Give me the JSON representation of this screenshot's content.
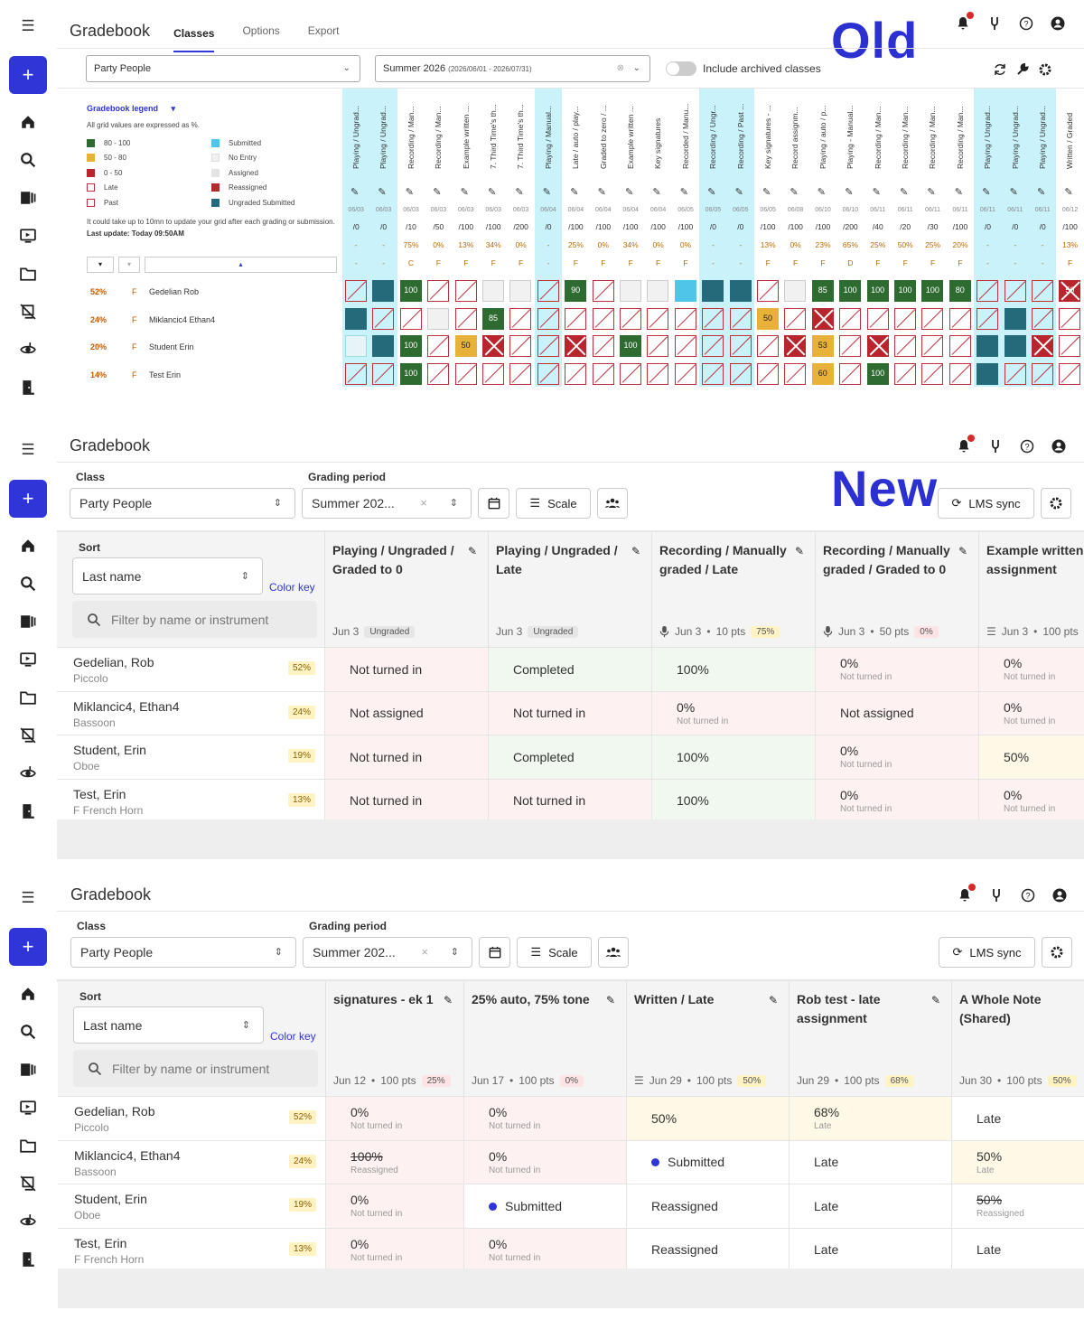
{
  "old": {
    "label": "Old",
    "title": "Gradebook",
    "tabs": [
      "Classes",
      "Options",
      "Export"
    ],
    "class_select": "Party People",
    "period_select_main": "Summer 2026",
    "period_select_range": "(2026/06/01 - 2026/07/31)",
    "archived_toggle": "Include archived classes",
    "legend": {
      "title": "Gradebook legend",
      "note": "All grid values are expressed as %.",
      "items": [
        {
          "label": "80 - 100",
          "color": "#2e6b30"
        },
        {
          "label": "Submitted",
          "color": "#4fc6e9"
        },
        {
          "label": "50 - 80",
          "color": "#e8b23a"
        },
        {
          "label": "No Entry",
          "color": "#f1f1f1"
        },
        {
          "label": "0 - 50",
          "color": "#b8252d"
        },
        {
          "label": "Assigned",
          "color": "#e3e3e3"
        },
        {
          "label": "Late",
          "color": "#ffffff"
        },
        {
          "label": "Reassigned",
          "color": "#b8252d"
        },
        {
          "label": "Past",
          "color": "#ffffff"
        },
        {
          "label": "Ungraded Submitted",
          "color": "#246a7a"
        }
      ],
      "update_note": "It could take up to 10mn to update your grid after each grading or submission.",
      "last_update": "Last update: Today 09:50AM"
    },
    "students": [
      {
        "pct": "52%",
        "grade": "F",
        "name": "Gedelian Rob"
      },
      {
        "pct": "24%",
        "grade": "F",
        "name": "Miklancic4 Ethan4"
      },
      {
        "pct": "20%",
        "grade": "F",
        "name": "Student Erin"
      },
      {
        "pct": "14%",
        "grade": "F",
        "name": "Test Erin"
      }
    ],
    "columns": [
      {
        "h": "Playing / Ungrad...",
        "d": "06/03",
        "m": "/0",
        "p": "-",
        "g": "-",
        "hl": true,
        "c": [
          "x",
          "teal",
          "lblue",
          "x"
        ]
      },
      {
        "h": "Playing / Ungrad...",
        "d": "06/03",
        "m": "/0",
        "p": "-",
        "g": "-",
        "hl": true,
        "c": [
          "teal",
          "x",
          "teal",
          "x"
        ]
      },
      {
        "h": "Recording / Man...",
        "d": "06/03",
        "m": "/10",
        "p": "75%",
        "g": "C",
        "hl": false,
        "c": [
          "green:100",
          "x",
          "green:100",
          "green:100"
        ]
      },
      {
        "h": "Recording / Man...",
        "d": "06/03",
        "m": "/50",
        "p": "0%",
        "g": "F",
        "hl": false,
        "c": [
          "x",
          "gray",
          "x",
          "x"
        ]
      },
      {
        "h": "Example written ...",
        "d": "06/03",
        "m": "/100",
        "p": "13%",
        "g": "F",
        "hl": false,
        "c": [
          "x",
          "x",
          "yellow:50",
          "x"
        ]
      },
      {
        "h": "7. Third Time's th...",
        "d": "06/03",
        "m": "/100",
        "p": "34%",
        "g": "F",
        "hl": false,
        "c": [
          "gray",
          "green:85",
          "reas",
          "x"
        ]
      },
      {
        "h": "7. Third Time's th...",
        "d": "06/03",
        "m": "/200",
        "p": "0%",
        "g": "F",
        "hl": false,
        "c": [
          "gray",
          "x",
          "x",
          "x"
        ]
      },
      {
        "h": "Playing / Manual...",
        "d": "06/04",
        "m": "/0",
        "p": "-",
        "g": "-",
        "hl": true,
        "c": [
          "x",
          "x",
          "x",
          "x"
        ]
      },
      {
        "h": "Late / auto / play...",
        "d": "06/04",
        "m": "/100",
        "p": "25%",
        "g": "F",
        "hl": false,
        "c": [
          "green:90",
          "x",
          "reas",
          "x"
        ]
      },
      {
        "h": "Graded to zero / ...",
        "d": "06/04",
        "m": "/100",
        "p": "0%",
        "g": "F",
        "hl": false,
        "c": [
          "x",
          "x",
          "x",
          "x"
        ]
      },
      {
        "h": "Example written ...",
        "d": "06/04",
        "m": "/100",
        "p": "34%",
        "g": "F",
        "hl": false,
        "c": [
          "gray",
          "x",
          "green:100",
          "x"
        ]
      },
      {
        "h": "Key signatures",
        "d": "06/04",
        "m": "/100",
        "p": "0%",
        "g": "F",
        "hl": false,
        "c": [
          "gray",
          "x",
          "x",
          "x"
        ]
      },
      {
        "h": "Recorded / Manu...",
        "d": "06/05",
        "m": "/100",
        "p": "0%",
        "g": "F",
        "hl": false,
        "c": [
          "sky",
          "x",
          "x",
          "x"
        ]
      },
      {
        "h": "Recording / Ungr...",
        "d": "06/05",
        "m": "/0",
        "p": "-",
        "g": "-",
        "hl": true,
        "c": [
          "teal",
          "x",
          "x",
          "x"
        ]
      },
      {
        "h": "Recording / Past ...",
        "d": "06/05",
        "m": "/0",
        "p": "-",
        "g": "-",
        "hl": true,
        "c": [
          "teal",
          "x",
          "x",
          "x"
        ]
      },
      {
        "h": "Key signatures - ...",
        "d": "06/05",
        "m": "/100",
        "p": "13%",
        "g": "F",
        "hl": false,
        "c": [
          "x",
          "yellow:50",
          "x",
          "x"
        ]
      },
      {
        "h": "Record assignm...",
        "d": "06/08",
        "m": "/100",
        "p": "0%",
        "g": "F",
        "hl": false,
        "c": [
          "gray",
          "x",
          "reas",
          "x"
        ]
      },
      {
        "h": "Playing / auto / p...",
        "d": "06/10",
        "m": "/100",
        "p": "23%",
        "g": "F",
        "hl": false,
        "c": [
          "green:85",
          "reas",
          "yellow:53",
          "yellow:60"
        ]
      },
      {
        "h": "Playing - Manual...",
        "d": "06/10",
        "m": "/200",
        "p": "65%",
        "g": "D",
        "hl": false,
        "c": [
          "green:100",
          "x",
          "x",
          "x"
        ]
      },
      {
        "h": "Recording / Man...",
        "d": "06/11",
        "m": "/40",
        "p": "25%",
        "g": "F",
        "hl": false,
        "c": [
          "green:100",
          "x",
          "reas",
          "green:100"
        ]
      },
      {
        "h": "Recording / Man...",
        "d": "06/11",
        "m": "/20",
        "p": "50%",
        "g": "F",
        "hl": false,
        "c": [
          "green:100",
          "x",
          "x",
          "x"
        ]
      },
      {
        "h": "Recording / Man...",
        "d": "06/11",
        "m": "/30",
        "p": "25%",
        "g": "F",
        "hl": false,
        "c": [
          "green:100",
          "x",
          "x",
          "x"
        ]
      },
      {
        "h": "Recording / Man...",
        "d": "06/11",
        "m": "/100",
        "p": "20%",
        "g": "F",
        "hl": false,
        "c": [
          "green:80",
          "x",
          "x",
          "x"
        ]
      },
      {
        "h": "Playing / Ungrad...",
        "d": "06/11",
        "m": "/0",
        "p": "-",
        "g": "-",
        "hl": true,
        "c": [
          "x",
          "x",
          "teal",
          "teal"
        ]
      },
      {
        "h": "Playing / Ungrad...",
        "d": "06/11",
        "m": "/0",
        "p": "-",
        "g": "-",
        "hl": true,
        "c": [
          "x",
          "teal",
          "teal",
          "x"
        ]
      },
      {
        "h": "Playing / Ungrad...",
        "d": "06/11",
        "m": "/0",
        "p": "-",
        "g": "-",
        "hl": true,
        "c": [
          "x",
          "x",
          "reas",
          "x"
        ]
      },
      {
        "h": "Written / Graded",
        "d": "06/12",
        "m": "/100",
        "p": "13%",
        "g": "F",
        "hl": false,
        "c": [
          "reas:50",
          "x",
          "x",
          "x"
        ]
      }
    ]
  },
  "new": {
    "label": "New",
    "title": "Gradebook",
    "class_label": "Class",
    "class_value": "Party People",
    "period_label": "Grading period",
    "period_value": "Summer 202...",
    "scale_btn": "Scale",
    "lms_btn": "LMS sync",
    "sort_label": "Sort",
    "sort_value": "Last name",
    "color_key": "Color key",
    "filter_placeholder": "Filter by name or instrument",
    "students": [
      {
        "name": "Gedelian, Rob",
        "inst": "Piccolo",
        "pct": "52%"
      },
      {
        "name": "Miklancic4, Ethan4",
        "inst": "Bassoon",
        "pct": "24%"
      },
      {
        "name": "Student, Erin",
        "inst": "Oboe",
        "pct": "19%"
      },
      {
        "name": "Test, Erin",
        "inst": "F French Horn",
        "pct": "13%"
      }
    ],
    "columns": [
      {
        "title": "Playing / Ungraded / Graded to 0",
        "date": "Jun 3",
        "pts": "",
        "pill": "Ungraded",
        "pc": "",
        "icon": "",
        "cells": [
          {
            "v": "Not turned in",
            "s": "",
            "bg": "red"
          },
          {
            "v": "Not assigned",
            "s": "",
            "bg": "red"
          },
          {
            "v": "Not turned in",
            "s": "",
            "bg": "red"
          },
          {
            "v": "Not turned in",
            "s": "",
            "bg": "red"
          }
        ]
      },
      {
        "title": "Playing / Ungraded / Late",
        "date": "Jun 3",
        "pts": "",
        "pill": "Ungraded",
        "pc": "",
        "icon": "",
        "cells": [
          {
            "v": "Completed",
            "s": "",
            "bg": "green"
          },
          {
            "v": "Not turned in",
            "s": "",
            "bg": "red"
          },
          {
            "v": "Completed",
            "s": "",
            "bg": "green"
          },
          {
            "v": "Not turned in",
            "s": "",
            "bg": "red"
          }
        ]
      },
      {
        "title": "Recording / Manually graded / Late",
        "date": "Jun 3",
        "pts": "10 pts",
        "pill": "75%",
        "pc": "y",
        "icon": "mic",
        "cells": [
          {
            "v": "100%",
            "s": "",
            "bg": "green"
          },
          {
            "v": "0%",
            "s": "Not turned in",
            "bg": "red"
          },
          {
            "v": "100%",
            "s": "",
            "bg": "green"
          },
          {
            "v": "100%",
            "s": "",
            "bg": "green"
          }
        ]
      },
      {
        "title": "Recording / Manually graded / Graded to 0",
        "date": "Jun 3",
        "pts": "50 pts",
        "pill": "0%",
        "pc": "r",
        "icon": "mic",
        "cells": [
          {
            "v": "0%",
            "s": "Not turned in",
            "bg": "red"
          },
          {
            "v": "Not assigned",
            "s": "",
            "bg": "red"
          },
          {
            "v": "0%",
            "s": "Not turned in",
            "bg": "red"
          },
          {
            "v": "0%",
            "s": "Not turned in",
            "bg": "red"
          }
        ]
      },
      {
        "title": "Example written assignment",
        "date": "Jun 3",
        "pts": "100 pts",
        "pill": "",
        "pc": "",
        "icon": "list",
        "cells": [
          {
            "v": "0%",
            "s": "Not turned in",
            "bg": "red"
          },
          {
            "v": "0%",
            "s": "Not turned in",
            "bg": "red"
          },
          {
            "v": "50%",
            "s": "",
            "bg": "yel"
          },
          {
            "v": "0%",
            "s": "Not turned in",
            "bg": "red"
          }
        ]
      }
    ]
  },
  "new2": {
    "title": "Gradebook",
    "class_label": "Class",
    "class_value": "Party People",
    "period_label": "Grading period",
    "period_value": "Summer 202...",
    "scale_btn": "Scale",
    "lms_btn": "LMS sync",
    "sort_label": "Sort",
    "sort_value": "Last name",
    "color_key": "Color key",
    "filter_placeholder": "Filter by name or instrument",
    "students": [
      {
        "name": "Gedelian, Rob",
        "inst": "Piccolo",
        "pct": "52%"
      },
      {
        "name": "Miklancic4, Ethan4",
        "inst": "Bassoon",
        "pct": "24%"
      },
      {
        "name": "Student, Erin",
        "inst": "Oboe",
        "pct": "19%"
      },
      {
        "name": "Test, Erin",
        "inst": "F French Horn",
        "pct": "13%"
      }
    ],
    "columns": [
      {
        "title": "signatures - ek 1",
        "date": "Jun 12",
        "pts": "100 pts",
        "pill": "25%",
        "pc": "r",
        "icon": "",
        "w": 153,
        "cells": [
          {
            "v": "0%",
            "s": "Not turned in",
            "bg": "red"
          },
          {
            "v": "100%",
            "s": "Reassigned",
            "bg": "red",
            "strike": true
          },
          {
            "v": "0%",
            "s": "Not turned in",
            "bg": "red"
          },
          {
            "v": "0%",
            "s": "Not turned in",
            "bg": "red"
          }
        ]
      },
      {
        "title": "25% auto, 75% tone",
        "date": "Jun 17",
        "pts": "100 pts",
        "pill": "0%",
        "pc": "r",
        "icon": "",
        "w": 180,
        "cells": [
          {
            "v": "0%",
            "s": "Not turned in",
            "bg": "red"
          },
          {
            "v": "0%",
            "s": "Not turned in",
            "bg": "red"
          },
          {
            "v": "Submitted",
            "s": "",
            "bg": "wh",
            "bullet": true
          },
          {
            "v": "0%",
            "s": "Not turned in",
            "bg": "red"
          }
        ]
      },
      {
        "title": "Written / Late",
        "date": "Jun 29",
        "pts": "100 pts",
        "pill": "50%",
        "pc": "y",
        "icon": "list",
        "w": 180,
        "cells": [
          {
            "v": "50%",
            "s": "",
            "bg": "yel"
          },
          {
            "v": "Submitted",
            "s": "",
            "bg": "wh",
            "bullet": true
          },
          {
            "v": "Reassigned",
            "s": "",
            "bg": "wh"
          },
          {
            "v": "Reassigned",
            "s": "",
            "bg": "wh"
          }
        ]
      },
      {
        "title": "Rob test - late assignment",
        "date": "Jun 29",
        "pts": "100 pts",
        "pill": "68%",
        "pc": "y",
        "icon": "",
        "w": 180,
        "cells": [
          {
            "v": "68%",
            "s": "Late",
            "bg": "yel"
          },
          {
            "v": "Late",
            "s": "",
            "bg": "wh"
          },
          {
            "v": "Late",
            "s": "",
            "bg": "wh"
          },
          {
            "v": "Late",
            "s": "",
            "bg": "wh"
          }
        ]
      },
      {
        "title": "A Whole Note (Shared)",
        "date": "Jun 30",
        "pts": "100 pts",
        "pill": "50%",
        "pc": "y",
        "icon": "",
        "w": 180,
        "cells": [
          {
            "v": "Late",
            "s": "",
            "bg": "wh"
          },
          {
            "v": "50%",
            "s": "Late",
            "bg": "yel"
          },
          {
            "v": "50%",
            "s": "Reassigned",
            "bg": "wh",
            "strike": true
          },
          {
            "v": "Late",
            "s": "",
            "bg": "wh"
          }
        ]
      }
    ]
  }
}
